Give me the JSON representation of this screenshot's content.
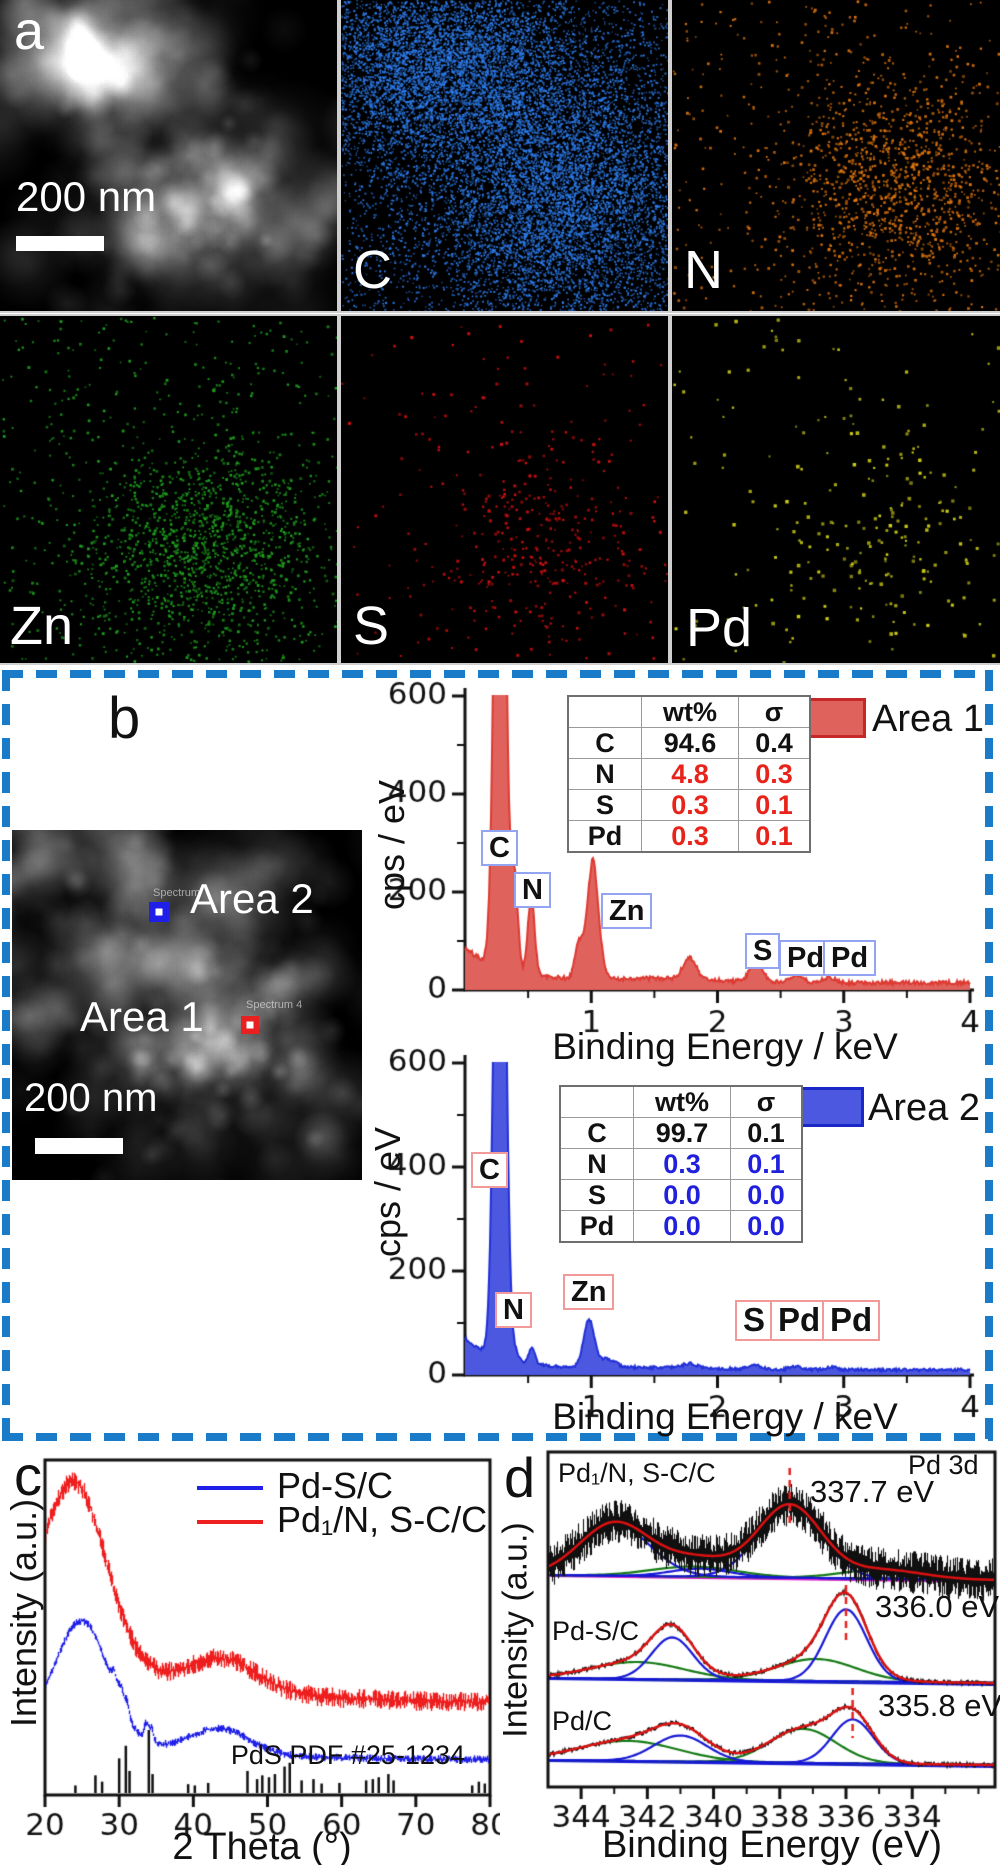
{
  "colors": {
    "dashed_border": "#1a7cc9",
    "area1_fill": "#e0625d",
    "area1_stroke": "#dd3a32",
    "area1_value_text": "#e8231a",
    "area2_fill": "#4d58e0",
    "area2_stroke": "#2130d8",
    "area2_value_text": "#2020dd",
    "xrd_blue": "#2020e8",
    "xrd_red": "#ee1f1f",
    "xps_black": "#111111",
    "xps_red": "#dd1111",
    "xps_blue": "#1717d6",
    "xps_green": "#157a15",
    "xps_magenta": "#dd22cc"
  },
  "panel_a": {
    "label": "a",
    "scale_bar_text": "200 nm",
    "maps": [
      {
        "id": "haadf",
        "label": "",
        "kind": "haadf",
        "seed": 3,
        "clusters": [
          [
            0.3,
            0.18,
            0.2,
            0.13,
            0.4
          ],
          [
            0.62,
            0.63,
            0.24,
            0.2,
            0.52
          ]
        ]
      },
      {
        "id": "c",
        "label": "C",
        "kind": "dots",
        "color": "#2e7ef0",
        "count": 15000,
        "dot": 1.7,
        "seed": 11,
        "clusters": [
          [
            0.3,
            0.22,
            0.22,
            0.16,
            0.38
          ],
          [
            0.68,
            0.62,
            0.22,
            0.22,
            0.44
          ]
        ],
        "uniform": 0.18
      },
      {
        "id": "n",
        "label": "N",
        "kind": "dots",
        "color": "#e2770f",
        "count": 1500,
        "dot": 2.2,
        "seed": 22,
        "clusters": [
          [
            0.68,
            0.6,
            0.17,
            0.18,
            0.78
          ]
        ],
        "uniform": 0.22
      },
      {
        "id": "zn",
        "label": "Zn",
        "kind": "dots",
        "color": "#1fa21f",
        "count": 1700,
        "dot": 2.2,
        "seed": 33,
        "clusters": [
          [
            0.6,
            0.66,
            0.18,
            0.16,
            0.78
          ]
        ],
        "uniform": 0.22
      },
      {
        "id": "s",
        "label": "S",
        "kind": "dots",
        "color": "#d01010",
        "count": 430,
        "dot": 2.4,
        "seed": 44,
        "clusters": [
          [
            0.63,
            0.66,
            0.17,
            0.16,
            0.72
          ]
        ],
        "uniform": 0.28
      },
      {
        "id": "pd",
        "label": "Pd",
        "kind": "dots",
        "color": "#cfcf18",
        "count": 240,
        "dot": 2.8,
        "seed": 55,
        "clusters": [
          [
            0.68,
            0.62,
            0.18,
            0.17,
            0.6
          ]
        ],
        "uniform": 0.4
      }
    ]
  },
  "panel_b": {
    "label": "b",
    "inset": {
      "area1": "Area 1",
      "area2": "Area 2",
      "caption1": "Spectrum 4",
      "caption2": "Spectrum",
      "scale_bar_text": "200 nm",
      "marker1_color": "#e82020",
      "marker2_color": "#1f1fe8",
      "seed": 5,
      "clusters": [
        [
          0.32,
          0.22,
          0.26,
          0.16,
          0.42
        ],
        [
          0.6,
          0.63,
          0.26,
          0.2,
          0.52
        ]
      ]
    },
    "legend1": "Area 1",
    "legend2": "Area 2",
    "table1": {
      "headers": [
        "",
        "wt%",
        "σ"
      ],
      "rows": [
        [
          "C",
          "94.6",
          "0.4",
          0
        ],
        [
          "N",
          "4.8",
          "0.3",
          1
        ],
        [
          "S",
          "0.3",
          "0.1",
          1
        ],
        [
          "Pd",
          "0.3",
          "0.1",
          1
        ]
      ]
    },
    "table2": {
      "headers": [
        "",
        "wt%",
        "σ"
      ],
      "rows": [
        [
          "C",
          "99.7",
          "0.1",
          0
        ],
        [
          "N",
          "0.3",
          "0.1",
          1
        ],
        [
          "S",
          "0.0",
          "0.0",
          1
        ],
        [
          "Pd",
          "0.0",
          "0.0",
          1
        ]
      ]
    }
  },
  "panel_c": {
    "label": "c"
  },
  "panel_d": {
    "label": "d"
  },
  "chart_data": [
    {
      "id": "eds_area1",
      "type": "area",
      "series_label": "Area 1",
      "xlabel": "Binding Energy / keV",
      "ylabel": "cps / eV",
      "xlim": [
        0,
        4
      ],
      "ylim": [
        0,
        600
      ],
      "x_ticks": [
        1,
        2,
        3,
        4
      ],
      "y_ticks": [
        0,
        200,
        400,
        600
      ],
      "fill": "#e0625d",
      "stroke": "#dd3a32",
      "noise": 4,
      "seed": 101,
      "background": {
        "base": 15,
        "exp_amp": 70,
        "exp_tau": 0.35,
        "hump_center": 1.55,
        "hump_amp": 8,
        "hump_sigma": 0.45
      },
      "peaks": [
        [
          0.277,
          1500,
          0.04
        ],
        [
          0.392,
          186,
          0.027
        ],
        [
          0.525,
          158,
          0.027
        ],
        [
          0.9,
          70,
          0.03
        ],
        [
          1.012,
          240,
          0.045
        ],
        [
          1.78,
          45,
          0.05
        ],
        [
          2.307,
          40,
          0.05
        ],
        [
          2.62,
          16,
          0.05
        ],
        [
          2.88,
          11,
          0.05
        ]
      ],
      "peak_labels": [
        "C",
        "N",
        "Zn",
        "S",
        "Pd",
        "Pd"
      ]
    },
    {
      "id": "eds_area2",
      "type": "area",
      "series_label": "Area 2",
      "xlabel": "Binding Energy / keV",
      "ylabel": "cps / eV",
      "xlim": [
        0,
        4
      ],
      "ylim": [
        0,
        600
      ],
      "x_ticks": [
        1,
        2,
        3,
        4
      ],
      "y_ticks": [
        0,
        200,
        400,
        600
      ],
      "fill": "#4d58e0",
      "stroke": "#2130d8",
      "noise": 2.6,
      "seed": 202,
      "background": {
        "base": 10,
        "exp_amp": 60,
        "exp_tau": 0.3,
        "hump_center": 1.5,
        "hump_amp": 4,
        "hump_sigma": 0.5
      },
      "peaks": [
        [
          0.277,
          1500,
          0.04
        ],
        [
          0.4,
          16,
          0.025
        ],
        [
          0.53,
          30,
          0.025
        ],
        [
          0.98,
          90,
          0.042
        ],
        [
          1.12,
          16,
          0.07
        ],
        [
          1.78,
          8,
          0.06
        ],
        [
          2.3,
          8,
          0.05
        ],
        [
          2.62,
          6,
          0.05
        ],
        [
          2.9,
          5,
          0.05
        ]
      ],
      "peak_labels": [
        "C",
        "N",
        "Zn",
        "S",
        "Pd",
        "Pd"
      ]
    },
    {
      "id": "xrd",
      "type": "line",
      "xlabel": "2 Theta (°)",
      "ylabel": "Intensity (a.u.)",
      "xlim": [
        20,
        80
      ],
      "x_ticks": [
        20,
        30,
        40,
        50,
        60,
        70,
        80
      ],
      "series": [
        {
          "name": "Pd-S/C",
          "color": "#2020e8",
          "base": 0.105,
          "decay_amp": 0.09,
          "decay_tau": 15,
          "noise": 0.012,
          "seed": 303,
          "peaks": [
            [
              25.0,
              0.35,
              3.6
            ],
            [
              43.5,
              0.075,
              4.0
            ],
            [
              29.3,
              0.045,
              0.35
            ],
            [
              30.2,
              0.05,
              0.3
            ],
            [
              31.0,
              0.045,
              0.3
            ],
            [
              33.6,
              0.05,
              0.3
            ],
            [
              34.3,
              0.04,
              0.3
            ]
          ]
        },
        {
          "name": "Pd₁/N, S-C/C",
          "color": "#ee1f1f",
          "base": 0.27,
          "decay_amp": 0.18,
          "decay_tau": 18,
          "noise": 0.03,
          "seed": 404,
          "peaks": [
            [
              24.0,
              0.52,
              4.2
            ],
            [
              44.0,
              0.09,
              4.5
            ]
          ]
        }
      ],
      "reference": {
        "label": "PdS PDF #25-1234",
        "sticks": [
          [
            24.1,
            0.12
          ],
          [
            26.8,
            0.28
          ],
          [
            27.7,
            0.18
          ],
          [
            30.0,
            0.55
          ],
          [
            30.9,
            0.75
          ],
          [
            31.4,
            0.35
          ],
          [
            34.0,
            1.0
          ],
          [
            34.5,
            0.3
          ],
          [
            39.3,
            0.14
          ],
          [
            40.2,
            0.12
          ],
          [
            42.0,
            0.16
          ],
          [
            47.3,
            0.35
          ],
          [
            48.6,
            0.22
          ],
          [
            49.3,
            0.28
          ],
          [
            50.2,
            0.25
          ],
          [
            51.0,
            0.3
          ],
          [
            52.3,
            0.42
          ],
          [
            53.0,
            0.48
          ],
          [
            54.6,
            0.2
          ],
          [
            56.2,
            0.22
          ],
          [
            57.3,
            0.15
          ],
          [
            59.7,
            0.16
          ],
          [
            63.3,
            0.2
          ],
          [
            64.2,
            0.22
          ],
          [
            65.0,
            0.25
          ],
          [
            66.3,
            0.3
          ],
          [
            67.0,
            0.2
          ],
          [
            77.6,
            0.12
          ],
          [
            78.5,
            0.18
          ],
          [
            79.3,
            0.15
          ]
        ]
      }
    },
    {
      "id": "xps",
      "type": "line",
      "title": "Pd 3d",
      "xlabel": "Binding Energy (eV)",
      "ylabel": "Intensity (a.u.)",
      "xlim": [
        345,
        331.5
      ],
      "x_ticks": [
        344,
        342,
        340,
        338,
        336,
        334
      ],
      "spectra": [
        {
          "name": "Pd₁/N, S-C/C",
          "annotation": "337.7 eV",
          "annotation_ev": 337.7,
          "noise": 13,
          "seed": 505,
          "blue": [
            [
              343.0,
              1.05,
              52
            ],
            [
              337.7,
              0.95,
              72
            ],
            [
              340.4,
              0.9,
              8
            ]
          ],
          "green": [
            [
              340.6,
              1.3,
              10
            ],
            [
              334.9,
              1.2,
              9
            ]
          ],
          "baseline": "magenta"
        },
        {
          "name": "Pd-S/C",
          "annotation": "336.0 eV",
          "annotation_ev": 336.0,
          "noise": 2.2,
          "seed": 606,
          "blue": [
            [
              341.25,
              0.62,
              42
            ],
            [
              336.0,
              0.62,
              72
            ]
          ],
          "green": [
            [
              342.3,
              1.4,
              17
            ],
            [
              336.9,
              1.2,
              22
            ]
          ],
          "baseline": "blue"
        },
        {
          "name": "Pd/C",
          "annotation": "335.8 eV",
          "annotation_ev": 335.8,
          "noise": 2.2,
          "seed": 707,
          "blue": [
            [
              341.0,
              0.8,
              26
            ],
            [
              335.8,
              0.62,
              44
            ]
          ],
          "green": [
            [
              342.6,
              1.5,
              20
            ],
            [
              337.3,
              1.0,
              34
            ]
          ],
          "baseline": "blue"
        }
      ]
    }
  ]
}
